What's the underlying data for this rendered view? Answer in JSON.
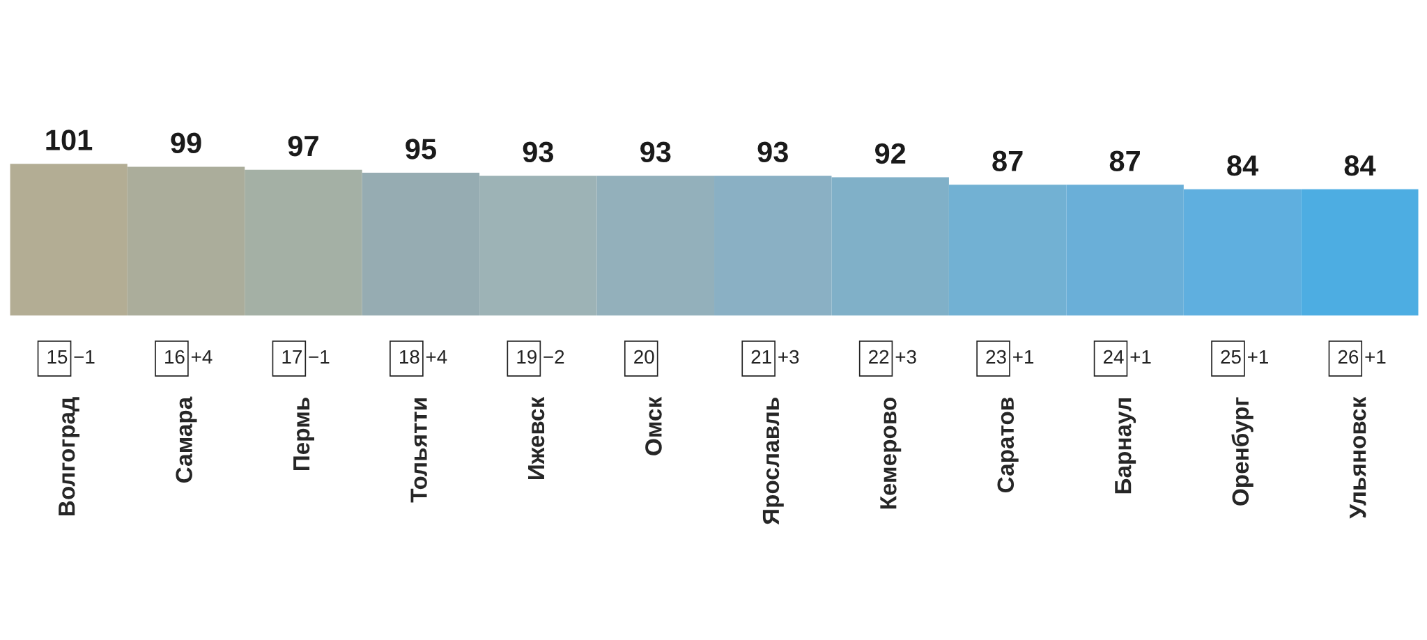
{
  "chart_data": {
    "type": "bar",
    "categories": [
      "Волгоград",
      "Самара",
      "Пермь",
      "Тольятти",
      "Ижевск",
      "Омск",
      "Ярославль",
      "Кемерово",
      "Саратов",
      "Барнаул",
      "Оренбург",
      "Ульяновск"
    ],
    "values": [
      101,
      99,
      97,
      95,
      93,
      93,
      93,
      92,
      87,
      87,
      84,
      84
    ],
    "colors": [
      "#b3ad94",
      "#abad9b",
      "#a4b0a5",
      "#96acb2",
      "#9db3b6",
      "#93b0bb",
      "#8ab0c4",
      "#80b0c8",
      "#72b1d3",
      "#6aafd8",
      "#5fafdf",
      "#4dade2"
    ],
    "data_labels": true,
    "tick_labels": "x",
    "annotations": [
      "15 −1",
      "16 +4",
      "17 −1",
      "18 +4",
      "19 −2",
      "20",
      "21 +3",
      "22 +3",
      "23 +1",
      "24 +1",
      "25 +1",
      "26 +1"
    ]
  }
}
